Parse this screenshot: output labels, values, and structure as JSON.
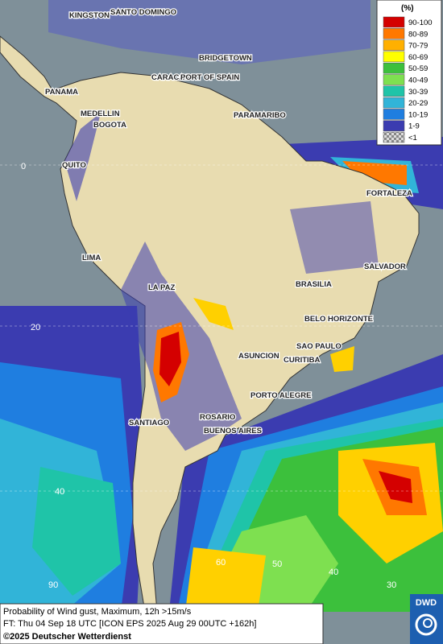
{
  "legend": {
    "title": "(%)",
    "items": [
      {
        "label": "90-100",
        "color": "#d40000"
      },
      {
        "label": "80-89",
        "color": "#ff7800"
      },
      {
        "label": "70-79",
        "color": "#ffb000"
      },
      {
        "label": "60-69",
        "color": "#ffff00"
      },
      {
        "label": "50-59",
        "color": "#3cc03c"
      },
      {
        "label": "40-49",
        "color": "#7ee050"
      },
      {
        "label": "30-39",
        "color": "#1fc4a8"
      },
      {
        "label": "20-29",
        "color": "#31b4d8"
      },
      {
        "label": "10-19",
        "color": "#1f7ee0"
      },
      {
        "label": "1-9",
        "color": "#3b3cb0"
      },
      {
        "label": "<1",
        "color": "checker"
      }
    ]
  },
  "cities": [
    "KINGSTON",
    "SANTO DOMINGO",
    "BRIDGETOWN",
    "PANAMA",
    "CARACAS",
    "PORT OF SPAIN",
    "MEDELLIN",
    "BOGOTA",
    "PARAMARIBO",
    "QUITO",
    "FORTALEZA",
    "LIMA",
    "SALVADOR",
    "LA PAZ",
    "BRASILIA",
    "BELO HORIZONTE",
    "ASUNCION",
    "SAO PAULO",
    "CURITIBA",
    "PORTO ALEGRE",
    "ROSARIO",
    "BUENOS AIRES",
    "SANTIAGO"
  ],
  "grid_labels": [
    "0",
    "20",
    "40",
    "90",
    "60",
    "50",
    "40",
    "30"
  ],
  "caption": {
    "line1": "Probability of Wind gust, Maximum, 12h >15m/s",
    "line2": "FT: Thu 04 Sep 18 UTC [ICON EPS 2025 Aug 29 00UTC +162h]",
    "copyright": "©2025 Deutscher Wetterdienst"
  },
  "logo": "DWD"
}
